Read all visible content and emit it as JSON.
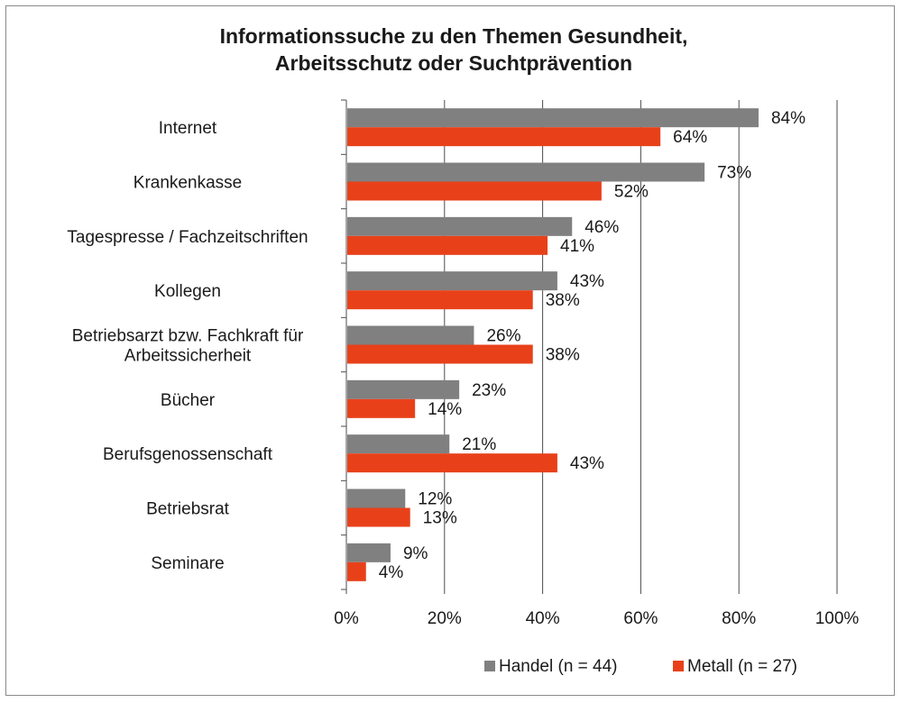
{
  "chart_data": {
    "type": "bar",
    "orientation": "horizontal",
    "title_lines": [
      "Informationssuche zu den Themen Gesundheit,",
      "Arbeitsschutz oder Suchtprävention"
    ],
    "categories": [
      [
        "Internet"
      ],
      [
        "Krankenkasse"
      ],
      [
        "Tagespresse / Fachzeitschriften"
      ],
      [
        "Kollegen"
      ],
      [
        "Betriebsarzt bzw. Fachkraft für",
        "Arbeitssicherheit"
      ],
      [
        "Bücher"
      ],
      [
        "Berufsgenossenschaft"
      ],
      [
        "Betriebsrat"
      ],
      [
        "Seminare"
      ]
    ],
    "series": [
      {
        "name": "Handel (n = 44)",
        "color": "#808080",
        "values": [
          84,
          73,
          46,
          43,
          26,
          23,
          21,
          12,
          9
        ]
      },
      {
        "name": "Metall (n = 27)",
        "color": "#e8411a",
        "values": [
          64,
          52,
          41,
          38,
          38,
          14,
          43,
          13,
          4
        ]
      }
    ],
    "value_suffix": "%",
    "xlim": [
      0,
      100
    ],
    "xticks": [
      0,
      20,
      40,
      60,
      80,
      100
    ],
    "xtick_labels": [
      "0%",
      "20%",
      "40%",
      "60%",
      "80%",
      "100%"
    ],
    "grid": true,
    "legend_position": "bottom-right"
  }
}
